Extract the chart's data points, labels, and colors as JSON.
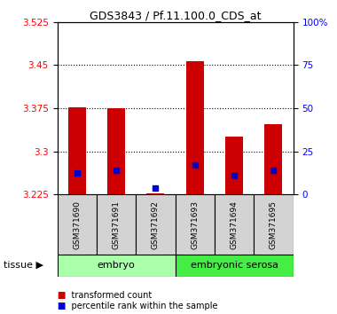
{
  "title": "GDS3843 / Pf.11.100.0_CDS_at",
  "samples": [
    "GSM371690",
    "GSM371691",
    "GSM371692",
    "GSM371693",
    "GSM371694",
    "GSM371695"
  ],
  "red_values": [
    3.377,
    3.375,
    3.227,
    3.457,
    3.326,
    3.348
  ],
  "blue_values": [
    3.262,
    3.268,
    3.237,
    3.277,
    3.258,
    3.268
  ],
  "y_min": 3.225,
  "y_max": 3.525,
  "y_ticks_left": [
    3.225,
    3.3,
    3.375,
    3.45,
    3.525
  ],
  "y_ticks_right_vals": [
    0,
    25,
    50,
    75,
    100
  ],
  "y_ticks_right_labels": [
    "0",
    "25",
    "50",
    "75",
    "100%"
  ],
  "groups": [
    {
      "label": "embryo",
      "start": 0,
      "end": 3,
      "color": "#aaffaa"
    },
    {
      "label": "embryonic serosa",
      "start": 3,
      "end": 6,
      "color": "#44ee44"
    }
  ],
  "tissue_label": "tissue",
  "legend_red": "transformed count",
  "legend_blue": "percentile rank within the sample",
  "bar_color": "#cc0000",
  "blue_color": "#0000cc",
  "bar_width": 0.45,
  "blue_marker_size": 5
}
